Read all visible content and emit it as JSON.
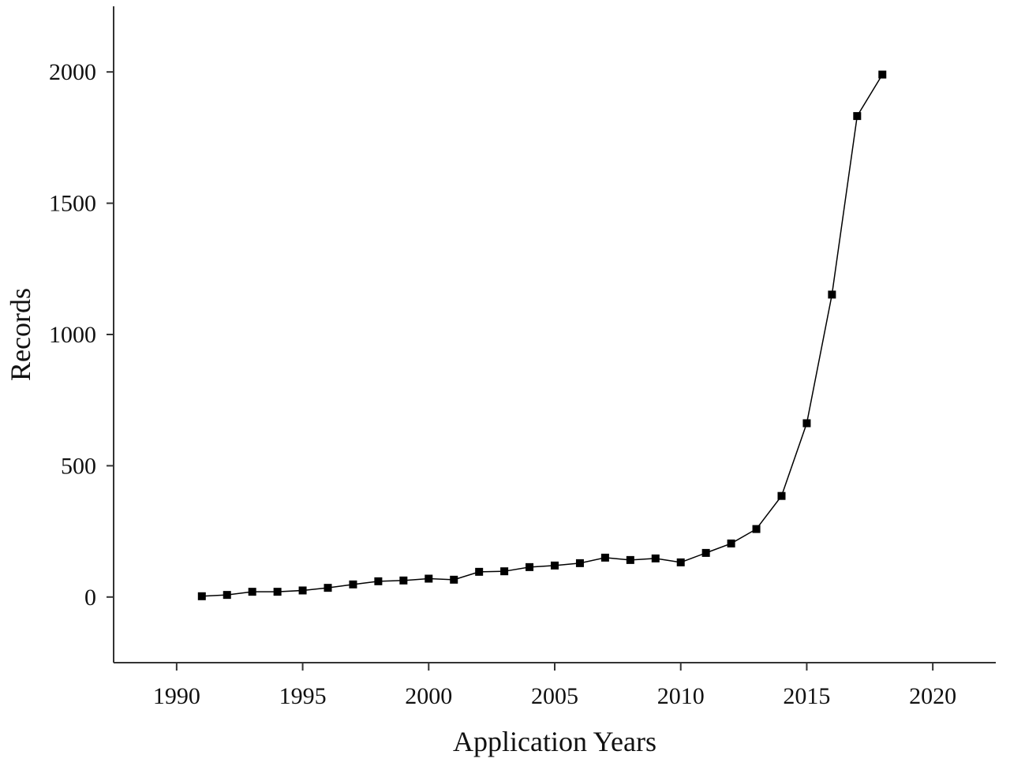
{
  "chart_data": {
    "type": "line",
    "x_label": "Application Years",
    "y_label": "Records",
    "x": [
      1991,
      1992,
      1993,
      1994,
      1995,
      1996,
      1997,
      1998,
      1999,
      2000,
      2001,
      2002,
      2003,
      2004,
      2005,
      2006,
      2007,
      2008,
      2009,
      2010,
      2011,
      2012,
      2013,
      2014,
      2015,
      2016,
      2017,
      2018
    ],
    "series": [
      {
        "color": "#000000",
        "values": [
          3,
          8,
          20,
          20,
          25,
          35,
          48,
          60,
          63,
          70,
          66,
          96,
          98,
          114,
          120,
          129,
          150,
          141,
          147,
          132,
          168,
          204,
          259,
          385,
          662,
          1152,
          1832,
          1990
        ]
      }
    ],
    "xlim": [
      1987.5,
      2022.5
    ],
    "xticks": [
      1990,
      1995,
      2000,
      2005,
      2010,
      2015,
      2020
    ],
    "ylim": [
      -250,
      2250
    ],
    "yticks": [
      0,
      500,
      1000,
      1500,
      2000
    ],
    "marker": "square"
  }
}
